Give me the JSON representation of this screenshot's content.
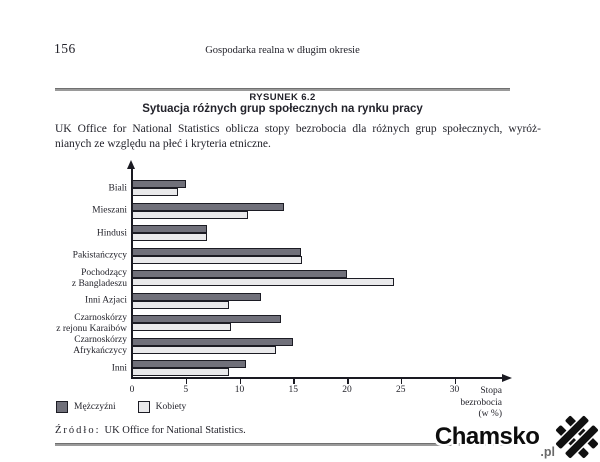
{
  "page": {
    "number": "156",
    "running_head": "Gospodarka realna w długim okresie"
  },
  "figure": {
    "label": "RYSUNEK 6.2",
    "title": "Sytuacja różnych grup społecznych na rynku pracy",
    "intro_line1": "UK Office for National Statistics oblicza stopy bezrobocia dla różnych grup społecznych, wyróż-",
    "intro_line2": "nianych ze względu na płeć i kryteria etniczne."
  },
  "chart_data": {
    "type": "bar",
    "orientation": "horizontal",
    "categories": [
      [
        "Biali"
      ],
      [
        "Mieszani"
      ],
      [
        "Hindusi"
      ],
      [
        "Pakistańczycy"
      ],
      [
        "Pochodzący",
        "z Bangladeszu"
      ],
      [
        "Inni Azjaci"
      ],
      [
        "Czarnoskórzy",
        "z rejonu Karaibów"
      ],
      [
        "Czarnoskórzy",
        "Afrykańczycy"
      ],
      [
        "Inni"
      ]
    ],
    "series": [
      {
        "name": "Mężczyźni",
        "color": "#70707a",
        "values": [
          5.0,
          14.1,
          7.0,
          15.7,
          20.0,
          12.0,
          13.9,
          15.0,
          10.6
        ]
      },
      {
        "name": "Kobiety",
        "color": "#e9e9eb",
        "values": [
          4.3,
          10.8,
          7.0,
          15.8,
          24.4,
          9.0,
          9.2,
          13.4,
          9.0
        ]
      }
    ],
    "xlabel": "Stopa bezrobocia (w %)",
    "xlabel_lines": [
      "Stopa",
      "bezrobocia",
      "(w %)"
    ],
    "xlim": [
      0,
      30
    ],
    "xticks": [
      0,
      5,
      10,
      15,
      20,
      25,
      30
    ],
    "grid": false,
    "legend_position": "bottom-left"
  },
  "source": {
    "label": "Źródło:",
    "text": "UK Office for National Statistics."
  },
  "watermark": {
    "text": "Chamsko",
    "suffix": ".pl"
  },
  "colors": {
    "ink": "#23232b",
    "rule": "#9a9a9a",
    "bar_men": "#70707a",
    "bar_women": "#e9e9eb",
    "axis": "#1a1a22"
  }
}
